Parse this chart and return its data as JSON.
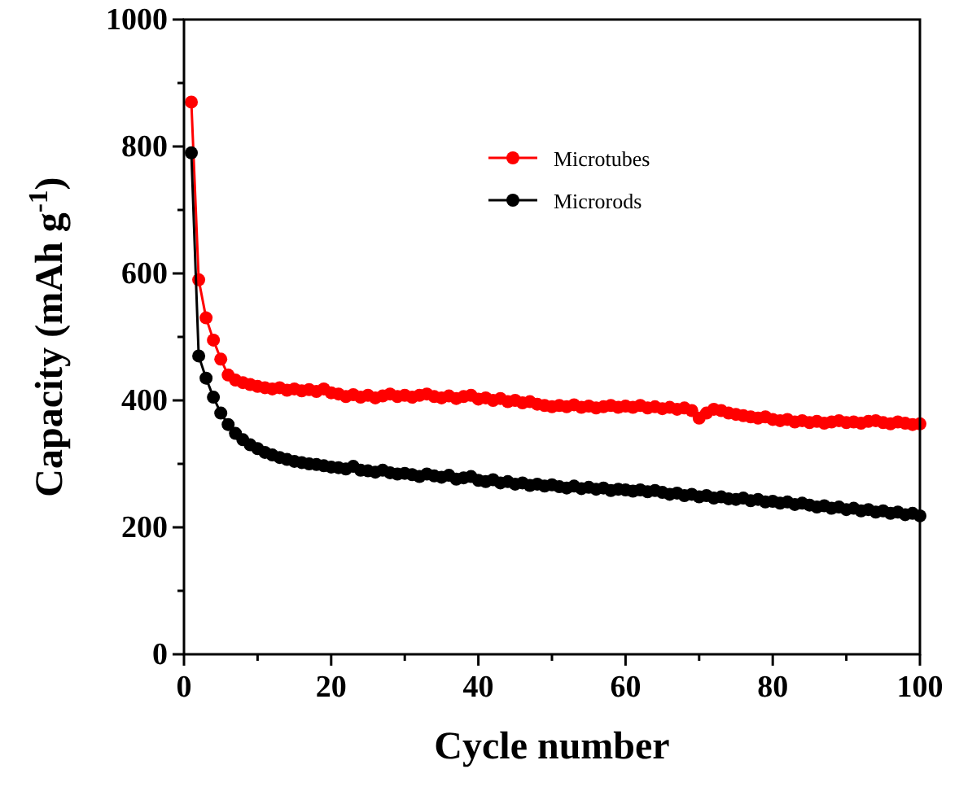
{
  "chart_data": {
    "type": "line",
    "xlabel": "Cycle number",
    "ylabel": "Capacity (mAh g$^{-1}$)",
    "x": [
      1,
      2,
      3,
      4,
      5,
      6,
      7,
      8,
      9,
      10,
      11,
      12,
      13,
      14,
      15,
      16,
      17,
      18,
      19,
      20,
      21,
      22,
      23,
      24,
      25,
      26,
      27,
      28,
      29,
      30,
      31,
      32,
      33,
      34,
      35,
      36,
      37,
      38,
      39,
      40,
      41,
      42,
      43,
      44,
      45,
      46,
      47,
      48,
      49,
      50,
      51,
      52,
      53,
      54,
      55,
      56,
      57,
      58,
      59,
      60,
      61,
      62,
      63,
      64,
      65,
      66,
      67,
      68,
      69,
      70,
      71,
      72,
      73,
      74,
      75,
      76,
      77,
      78,
      79,
      80,
      81,
      82,
      83,
      84,
      85,
      86,
      87,
      88,
      89,
      90,
      91,
      92,
      93,
      94,
      95,
      96,
      97,
      98,
      99,
      100
    ],
    "series": [
      {
        "name": "Microtubes",
        "color": "#ff0000",
        "values": [
          870,
          590,
          530,
          495,
          465,
          440,
          432,
          428,
          425,
          422,
          420,
          418,
          420,
          416,
          418,
          415,
          417,
          414,
          418,
          412,
          410,
          406,
          409,
          405,
          408,
          404,
          407,
          410,
          406,
          408,
          405,
          408,
          410,
          406,
          404,
          407,
          403,
          406,
          408,
          402,
          404,
          400,
          403,
          398,
          400,
          396,
          398,
          394,
          392,
          390,
          392,
          390,
          393,
          389,
          391,
          388,
          390,
          392,
          389,
          391,
          389,
          392,
          388,
          390,
          387,
          389,
          386,
          388,
          384,
          372,
          380,
          386,
          384,
          380,
          378,
          376,
          374,
          372,
          374,
          370,
          368,
          370,
          366,
          368,
          365,
          367,
          364,
          366,
          368,
          365,
          366,
          364,
          367,
          368,
          365,
          363,
          366,
          364,
          362,
          363
        ]
      },
      {
        "name": "Microrods",
        "color": "#000000",
        "values": [
          790,
          470,
          435,
          405,
          380,
          362,
          348,
          338,
          330,
          324,
          318,
          314,
          310,
          307,
          304,
          302,
          300,
          299,
          297,
          295,
          294,
          292,
          296,
          290,
          289,
          287,
          290,
          286,
          284,
          285,
          283,
          280,
          284,
          281,
          279,
          282,
          276,
          278,
          280,
          274,
          272,
          275,
          270,
          272,
          268,
          270,
          266,
          268,
          265,
          267,
          264,
          262,
          265,
          261,
          263,
          260,
          262,
          258,
          260,
          259,
          257,
          259,
          256,
          258,
          255,
          252,
          254,
          250,
          252,
          248,
          250,
          246,
          248,
          245,
          244,
          246,
          242,
          244,
          240,
          241,
          238,
          240,
          236,
          238,
          235,
          232,
          234,
          230,
          232,
          228,
          230,
          226,
          228,
          224,
          226,
          222,
          224,
          220,
          222,
          218
        ]
      }
    ],
    "xlim": [
      0,
      100
    ],
    "xticks": [
      0,
      {
        "value": 10,
        "label": null
      },
      20,
      {
        "value": 30,
        "label": null
      },
      40,
      {
        "value": 50,
        "label": null
      },
      60,
      {
        "value": 70,
        "label": null
      },
      80,
      {
        "value": 90,
        "label": null
      },
      100
    ],
    "ylim": [
      0,
      1000
    ],
    "yticks": [
      0,
      {
        "value": 100,
        "label": null
      },
      200,
      {
        "value": 300,
        "label": null
      },
      400,
      {
        "value": 500,
        "label": null
      },
      600,
      {
        "value": 700,
        "label": null
      },
      800,
      {
        "value": 900,
        "label": null
      },
      1000
    ],
    "marker": "circle",
    "line_style": "solid",
    "legend": "top right",
    "grid": false
  }
}
